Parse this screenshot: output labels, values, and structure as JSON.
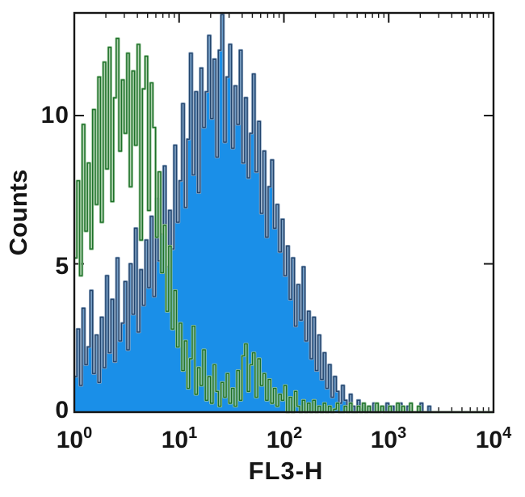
{
  "figure": {
    "xlabel": "FL3-H",
    "ylabel": "Counts",
    "yticklabels": [
      "0",
      "5",
      "10"
    ],
    "xticklabels": [
      {
        "base": "10",
        "exp": "0"
      },
      {
        "base": "10",
        "exp": "1"
      },
      {
        "base": "10",
        "exp": "2"
      },
      {
        "base": "10",
        "exp": "3"
      },
      {
        "base": "10",
        "exp": "4"
      }
    ]
  },
  "colors": {
    "axis": "#161616",
    "text": "#151515",
    "blue_fill": "#1a8fe8",
    "blue_line": "#22456e",
    "blue_halo": "#8ba3bf",
    "green_line": "#1d7029",
    "green_halo": "#9cc79c"
  },
  "chart_data": {
    "type": "area",
    "subtype": "flow-cytometry-overlay-histogram",
    "title": "",
    "xlabel": "FL3-H",
    "ylabel": "Counts",
    "x_scale": "log10",
    "x_range_decades": [
      0,
      4
    ],
    "x_ticks_log": [
      0,
      1,
      2,
      3,
      4
    ],
    "yticks": [
      0,
      5,
      10
    ],
    "ylim": [
      0,
      13.46
    ],
    "grid": false,
    "legend": "none",
    "bins_per_decade": 40,
    "series": [
      {
        "name": "blue-filled-histogram",
        "style": "filled",
        "fill_color": "#1a8fe8",
        "line_color": "#22456e",
        "halo_color": "#8ba3bf",
        "values": [
          1.2,
          2.8,
          0.9,
          3.5,
          1.6,
          2.2,
          4.1,
          1.3,
          2.6,
          1.0,
          3.2,
          1.5,
          4.6,
          2.0,
          3.8,
          1.7,
          5.2,
          2.4,
          3.0,
          4.4,
          2.1,
          5.0,
          3.3,
          6.2,
          2.7,
          4.8,
          3.6,
          5.8,
          4.2,
          6.6,
          3.9,
          7.2,
          5.1,
          6.0,
          8.3,
          4.9,
          6.8,
          5.5,
          9.0,
          6.4,
          7.8,
          10.4,
          6.9,
          9.2,
          12.1,
          8.0,
          10.8,
          7.4,
          11.6,
          9.6,
          10.8,
          12.7,
          9.9,
          11.9,
          8.6,
          12.2,
          13.4,
          9.1,
          11.3,
          12.4,
          8.9,
          11.0,
          9.7,
          12.2,
          8.4,
          10.6,
          7.9,
          9.4,
          11.4,
          8.1,
          9.8,
          6.7,
          8.8,
          5.9,
          7.6,
          8.5,
          6.2,
          7.0,
          5.4,
          6.5,
          4.6,
          5.6,
          3.8,
          5.2,
          2.9,
          4.3,
          3.1,
          4.9,
          2.4,
          3.4,
          1.8,
          3.2,
          1.4,
          2.6,
          1.1,
          2.0,
          0.8,
          1.6,
          0.5,
          1.2,
          0.7,
          0.3,
          0.9,
          0.4,
          0,
          0.6,
          0.2,
          0,
          0.4,
          0.1,
          0.3,
          0,
          0.2,
          0,
          0.3,
          0,
          0,
          0.2,
          0,
          0.3,
          0,
          0.2,
          0,
          0,
          0.3,
          0,
          0,
          0.2,
          0,
          0,
          0,
          0,
          0.3,
          0,
          0,
          0.2,
          0,
          0,
          0,
          0,
          0,
          0,
          0,
          0,
          0,
          0,
          0,
          0,
          0,
          0,
          0,
          0,
          0,
          0,
          0,
          0,
          0,
          0,
          0,
          0
        ]
      },
      {
        "name": "green-open-histogram",
        "style": "open",
        "line_color": "#1d7029",
        "halo_color": "#9cc79c",
        "values": [
          5.2,
          7.8,
          4.6,
          9.7,
          6.1,
          8.4,
          5.5,
          10.2,
          7.0,
          11.3,
          6.4,
          11.8,
          8.2,
          12.3,
          7.1,
          10.6,
          12.6,
          8.8,
          11.2,
          9.4,
          12.1,
          7.6,
          11.5,
          9.0,
          12.4,
          5.8,
          10.9,
          12.0,
          6.8,
          11.1,
          9.6,
          5.9,
          8.1,
          4.7,
          6.3,
          3.4,
          5.6,
          2.8,
          4.1,
          2.2,
          3.0,
          1.4,
          2.4,
          0.8,
          1.8,
          2.9,
          0.6,
          1.5,
          0.9,
          2.1,
          0.4,
          1.2,
          0.3,
          1.6,
          0.7,
          0.2,
          1.0,
          0.5,
          1.3,
          0.3,
          0.8,
          0.2,
          1.4,
          0.4,
          1.9,
          2.3,
          0.7,
          1.6,
          2.0,
          0.5,
          1.8,
          0.9,
          1.3,
          0.4,
          1.1,
          0.3,
          0.8,
          0.2,
          0.6,
          0.4,
          0.9,
          0,
          0.5,
          0,
          0.7,
          0.2,
          0,
          0.4,
          0,
          0.3,
          0,
          0.4,
          0,
          0.2,
          0,
          0.3,
          0,
          0.2,
          0,
          0.1,
          0.3,
          0,
          0,
          0.2,
          0,
          0.3,
          0,
          0,
          0.2,
          0,
          0.3,
          0,
          0.2,
          0,
          0,
          0.3,
          0,
          0.2,
          0,
          0,
          0.2,
          0,
          0,
          0.3,
          0,
          0.2,
          0,
          0,
          0.3,
          0,
          0,
          0.2,
          0,
          0,
          0,
          0,
          0,
          0,
          0,
          0,
          0,
          0,
          0,
          0,
          0,
          0,
          0,
          0,
          0,
          0,
          0,
          0,
          0,
          0,
          0,
          0,
          0,
          0,
          0,
          0
        ]
      }
    ]
  }
}
